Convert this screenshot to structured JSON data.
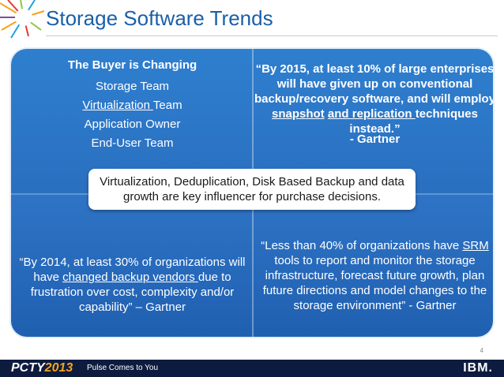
{
  "header": {
    "title": "Storage Software Trends"
  },
  "top_left": {
    "heading": "The Buyer is Changing",
    "lines": [
      {
        "u": "",
        "rest": "Storage Team"
      },
      {
        "u": "Virtualization ",
        "rest": "Team"
      },
      {
        "u": "",
        "rest": "Application Owner"
      },
      {
        "u": "",
        "rest": "End-User Team"
      }
    ]
  },
  "top_right": {
    "pre": "“By 2015, at least 10% of large enterprises will have given up on conventional backup/recovery software, and will employ ",
    "u1": "snapshot",
    "space": " ",
    "u2": "and replication ",
    "post": "techniques instead.”",
    "attribution": "- Gartner"
  },
  "center": {
    "text": "Virtualization, Deduplication, Disk Based Backup and data growth are key influencer for purchase decisions."
  },
  "bottom_left": {
    "pre": "“By 2014, at least 30% of organizations will have ",
    "u": "changed backup vendors ",
    "post": "due to frustration over cost, complexity and/or capability” – Gartner"
  },
  "bottom_right": {
    "pre": "“Less than 40% of organizations have ",
    "u": "SRM",
    "post": " tools to report and monitor the storage infrastructure, forecast future growth, plan future directions and model changes to the storage environment” - Gartner"
  },
  "page_number": "4",
  "footer": {
    "brand_main": "PCTY",
    "brand_year": "2013",
    "tagline": "Pulse Comes to You",
    "logo": "IBM."
  },
  "icons": {
    "corner_logo": "pulse-starburst-icon"
  },
  "colors": {
    "title": "#1a5fa8",
    "panel_blue": "#2a6fc0",
    "footer": "#0d1b3e",
    "accent_year": "#f5a31a"
  }
}
